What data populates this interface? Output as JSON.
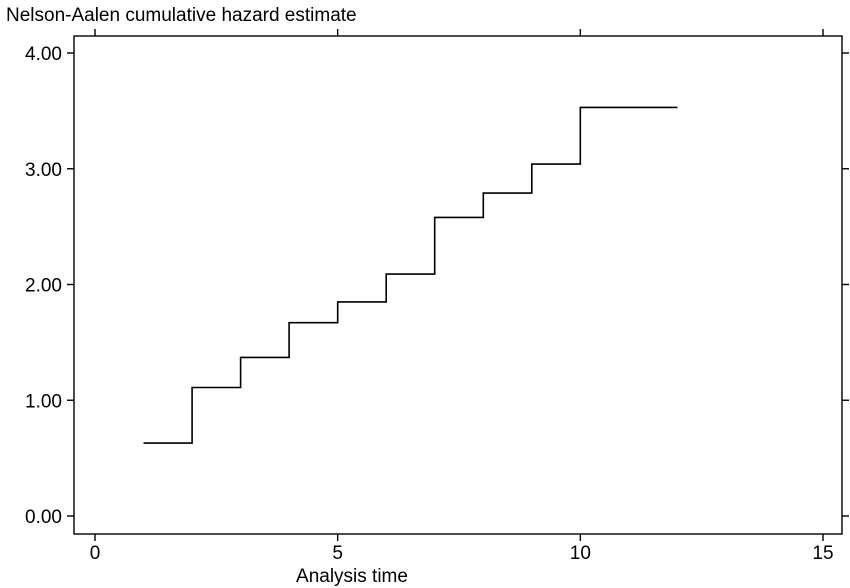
{
  "chart_data": {
    "type": "line",
    "title": "Nelson-Aalen cumulative hazard estimate",
    "xlabel": "Analysis time",
    "ylabel": "",
    "xlim": [
      0,
      15
    ],
    "ylim": [
      0,
      4
    ],
    "xticks": [
      0,
      5,
      10,
      15
    ],
    "xtick_labels": [
      "0",
      "5",
      "10",
      "15"
    ],
    "yticks": [
      0,
      1,
      2,
      3,
      4
    ],
    "ytick_labels": [
      "0.00",
      "1.00",
      "2.00",
      "3.00",
      "4.00"
    ],
    "grid": false,
    "legend": "none",
    "step": true,
    "series": [
      {
        "x": [
          1,
          2,
          3,
          4,
          5,
          6,
          7,
          8,
          9,
          10,
          12
        ],
        "y": [
          0.63,
          1.11,
          1.37,
          1.67,
          1.85,
          2.09,
          2.58,
          2.79,
          3.04,
          3.53,
          3.53
        ]
      }
    ],
    "colors": {
      "line": "#000000",
      "axis": "#000000"
    }
  }
}
